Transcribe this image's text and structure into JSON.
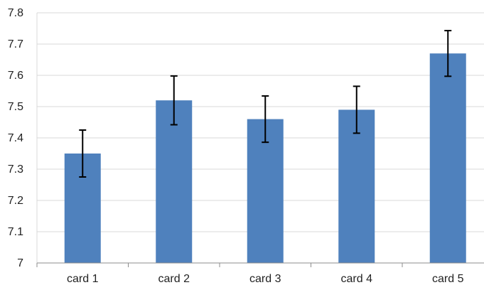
{
  "chart_data": {
    "type": "bar",
    "title": "",
    "xlabel": "",
    "ylabel": "",
    "categories": [
      "card 1",
      "card 2",
      "card 3",
      "card 4",
      "card 5"
    ],
    "values": [
      7.35,
      7.52,
      7.46,
      7.49,
      7.67
    ],
    "errors": [
      0.075,
      0.078,
      0.074,
      0.075,
      0.073
    ],
    "ylim": [
      7,
      7.8
    ],
    "yticks": [
      7,
      7.1,
      7.2,
      7.3,
      7.4,
      7.5,
      7.6,
      7.7,
      7.8
    ],
    "ytick_labels": [
      "7",
      "7.1",
      "7.2",
      "7.3",
      "7.4",
      "7.5",
      "7.6",
      "7.7",
      "7.8"
    ],
    "grid": true,
    "legend": "none",
    "colors": {
      "bar": "#4f81bd",
      "gridline": "#d9d9d9",
      "axis": "#8c8c8c",
      "error_bar": "#000000"
    }
  }
}
